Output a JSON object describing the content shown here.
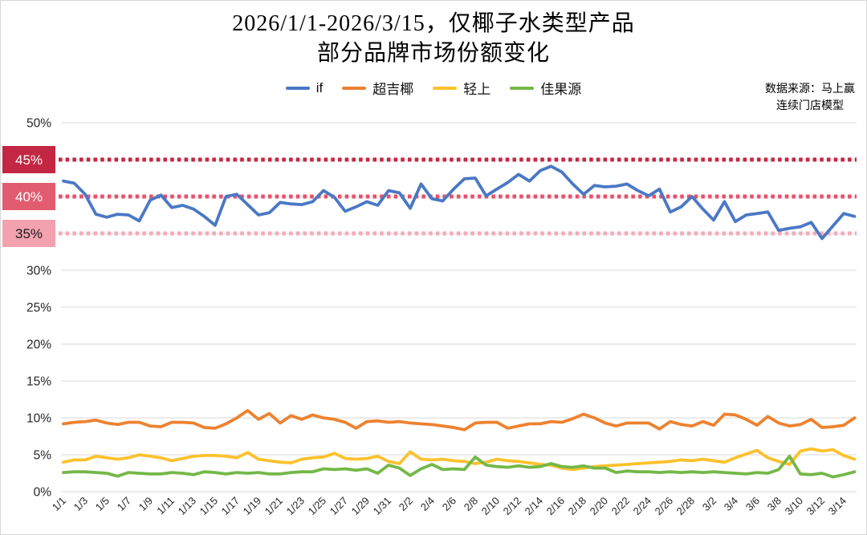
{
  "title": {
    "line1": "2026/1/1-2026/3/15，仅椰子水类型产品",
    "line2": "部分品牌市场份额变化"
  },
  "source": {
    "line1": "数据来源：马上赢",
    "line2": "连续门店模型"
  },
  "legend": {
    "items": [
      {
        "label": "if",
        "color": "#4a78c5"
      },
      {
        "label": "超吉椰",
        "color": "#ed8230"
      },
      {
        "label": "轻上",
        "color": "#fcc12d"
      },
      {
        "label": "佳果源",
        "color": "#74b848"
      }
    ]
  },
  "chart_data": {
    "type": "line",
    "title": "2026/1/1-2026/3/15，仅椰子水类型产品 部分品牌市场份额变化",
    "xlabel": "",
    "ylabel": "",
    "ylim": [
      0,
      50
    ],
    "y_tick_step": 5,
    "y_tick_suffix": "%",
    "grid": true,
    "legend_position": "top",
    "x_tick_every": 2,
    "x": [
      "1/1",
      "1/2",
      "1/3",
      "1/4",
      "1/5",
      "1/6",
      "1/7",
      "1/8",
      "1/9",
      "1/10",
      "1/11",
      "1/12",
      "1/13",
      "1/14",
      "1/15",
      "1/16",
      "1/17",
      "1/18",
      "1/19",
      "1/20",
      "1/21",
      "1/22",
      "1/23",
      "1/24",
      "1/25",
      "1/26",
      "1/27",
      "1/28",
      "1/29",
      "1/30",
      "1/31",
      "2/1",
      "2/2",
      "2/3",
      "2/4",
      "2/5",
      "2/6",
      "2/7",
      "2/8",
      "2/9",
      "2/10",
      "2/11",
      "2/12",
      "2/13",
      "2/14",
      "2/15",
      "2/16",
      "2/17",
      "2/18",
      "2/19",
      "2/20",
      "2/21",
      "2/22",
      "2/23",
      "2/24",
      "2/25",
      "2/26",
      "2/27",
      "2/28",
      "3/1",
      "3/2",
      "3/3",
      "3/4",
      "3/5",
      "3/6",
      "3/7",
      "3/8",
      "3/9",
      "3/10",
      "3/11",
      "3/12",
      "3/13",
      "3/14",
      "3/15"
    ],
    "series": [
      {
        "name": "if",
        "color": "#4a78c5",
        "values": [
          42.1,
          41.8,
          40.3,
          37.6,
          37.2,
          37.6,
          37.5,
          36.7,
          39.5,
          40.2,
          38.5,
          38.8,
          38.3,
          37.3,
          36.1,
          40.0,
          40.3,
          38.9,
          37.5,
          37.8,
          39.2,
          39.0,
          38.9,
          39.3,
          40.8,
          39.9,
          38.0,
          38.6,
          39.3,
          38.8,
          40.8,
          40.5,
          38.4,
          41.7,
          39.7,
          39.4,
          41.0,
          42.4,
          42.5,
          40.1,
          41.0,
          41.9,
          43.0,
          42.1,
          43.5,
          44.1,
          43.3,
          41.7,
          40.3,
          41.5,
          41.3,
          41.4,
          41.7,
          40.8,
          40.1,
          41.0,
          37.9,
          38.6,
          40.0,
          38.3,
          36.8,
          39.3,
          36.6,
          37.5,
          37.7,
          37.9,
          35.4,
          35.7,
          35.9,
          36.5,
          34.3,
          36.0,
          37.7,
          37.3
        ]
      },
      {
        "name": "超吉椰",
        "color": "#ed8230",
        "values": [
          9.2,
          9.4,
          9.5,
          9.7,
          9.3,
          9.1,
          9.4,
          9.4,
          8.9,
          8.8,
          9.4,
          9.4,
          9.3,
          8.7,
          8.6,
          9.2,
          10.0,
          11.0,
          9.8,
          10.6,
          9.3,
          10.3,
          9.8,
          10.4,
          10.0,
          9.8,
          9.4,
          8.6,
          9.5,
          9.6,
          9.4,
          9.5,
          9.3,
          9.2,
          9.1,
          8.9,
          8.7,
          8.4,
          9.3,
          9.4,
          9.4,
          8.6,
          8.9,
          9.2,
          9.2,
          9.5,
          9.4,
          9.9,
          10.5,
          10.0,
          9.3,
          8.9,
          9.3,
          9.3,
          9.3,
          8.5,
          9.5,
          9.1,
          8.9,
          9.5,
          9.0,
          10.5,
          10.4,
          9.8,
          9.0,
          10.2,
          9.3,
          8.9,
          9.1,
          9.8,
          8.7,
          8.8,
          9.0,
          10.0
        ]
      },
      {
        "name": "轻上",
        "color": "#fcc12d",
        "values": [
          4.0,
          4.3,
          4.3,
          4.8,
          4.6,
          4.4,
          4.6,
          5.0,
          4.8,
          4.6,
          4.2,
          4.5,
          4.8,
          4.9,
          4.9,
          4.8,
          4.6,
          5.3,
          4.4,
          4.2,
          4.0,
          3.9,
          4.4,
          4.6,
          4.7,
          5.2,
          4.5,
          4.4,
          4.5,
          4.8,
          4.1,
          3.8,
          5.4,
          4.4,
          4.3,
          4.4,
          4.2,
          4.1,
          3.8,
          4.0,
          4.4,
          4.2,
          4.1,
          3.9,
          3.7,
          3.6,
          3.2,
          3.0,
          3.2,
          3.4,
          3.5,
          3.6,
          3.7,
          3.8,
          3.9,
          4.0,
          4.1,
          4.3,
          4.2,
          4.4,
          4.2,
          4.0,
          4.6,
          5.1,
          5.6,
          4.6,
          4.1,
          3.7,
          5.5,
          5.8,
          5.5,
          5.7,
          4.9,
          4.4
        ]
      },
      {
        "name": "佳果源",
        "color": "#74b848",
        "values": [
          2.6,
          2.7,
          2.7,
          2.6,
          2.5,
          2.1,
          2.6,
          2.5,
          2.4,
          2.4,
          2.6,
          2.5,
          2.3,
          2.7,
          2.6,
          2.4,
          2.6,
          2.5,
          2.6,
          2.4,
          2.4,
          2.6,
          2.7,
          2.7,
          3.1,
          3.0,
          3.1,
          2.9,
          3.1,
          2.5,
          3.6,
          3.2,
          2.2,
          3.1,
          3.7,
          3.0,
          3.1,
          3.0,
          4.7,
          3.6,
          3.4,
          3.3,
          3.5,
          3.3,
          3.4,
          3.8,
          3.4,
          3.3,
          3.5,
          3.2,
          3.2,
          2.6,
          2.8,
          2.7,
          2.7,
          2.6,
          2.7,
          2.6,
          2.7,
          2.6,
          2.7,
          2.6,
          2.5,
          2.4,
          2.6,
          2.5,
          3.0,
          4.8,
          2.4,
          2.3,
          2.5,
          2.0,
          2.3,
          2.7
        ]
      }
    ],
    "thresholds": [
      {
        "level": 45,
        "label": "45%",
        "box_color": "#c32743",
        "text_color": "#ffffff",
        "line_color": "#c32743"
      },
      {
        "level": 40,
        "label": "40%",
        "box_color": "#e25c6f",
        "text_color": "#ffffff",
        "line_color": "#e8506a"
      },
      {
        "level": 35,
        "label": "35%",
        "box_color": "#f2a2ae",
        "text_color": "#1a1a1a",
        "line_color": "#f4abb7"
      }
    ],
    "annotations": {
      "gridline_color": "#d9d9d9",
      "axis_text_color": "#262626"
    }
  }
}
